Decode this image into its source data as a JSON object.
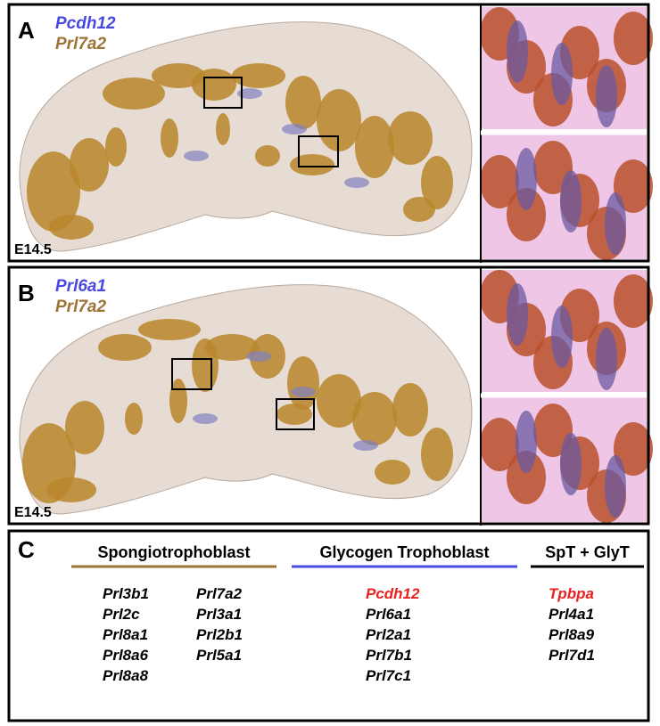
{
  "panels": [
    {
      "letter": "A",
      "probe_blue": "Pcdh12",
      "probe_brown": "Prl7a2",
      "stage": "E14.5"
    },
    {
      "letter": "B",
      "probe_blue": "Prl6a1",
      "probe_brown": "Prl7a2",
      "stage": "E14.5"
    }
  ],
  "table": {
    "letter": "C",
    "columns": [
      {
        "header": "Spongiotrophoblast",
        "gene_columns": [
          [
            "Prl3b1",
            "Prl2c",
            "Prl8a1",
            "Prl8a6",
            "Prl8a8"
          ],
          [
            "Prl7a2",
            "Prl3a1",
            "Prl2b1",
            "Prl5a1"
          ]
        ]
      },
      {
        "header": "Glycogen Trophoblast",
        "gene_columns": [
          [
            "Pcdh12",
            "Prl6a1",
            "Prl2a1",
            "Prl7b1",
            "Prl7c1"
          ]
        ]
      },
      {
        "header": "SpT + GlyT",
        "gene_columns": [
          [
            "Tpbpa",
            "Prl4a1",
            "Prl8a9",
            "Prl7d1"
          ]
        ]
      }
    ]
  }
}
